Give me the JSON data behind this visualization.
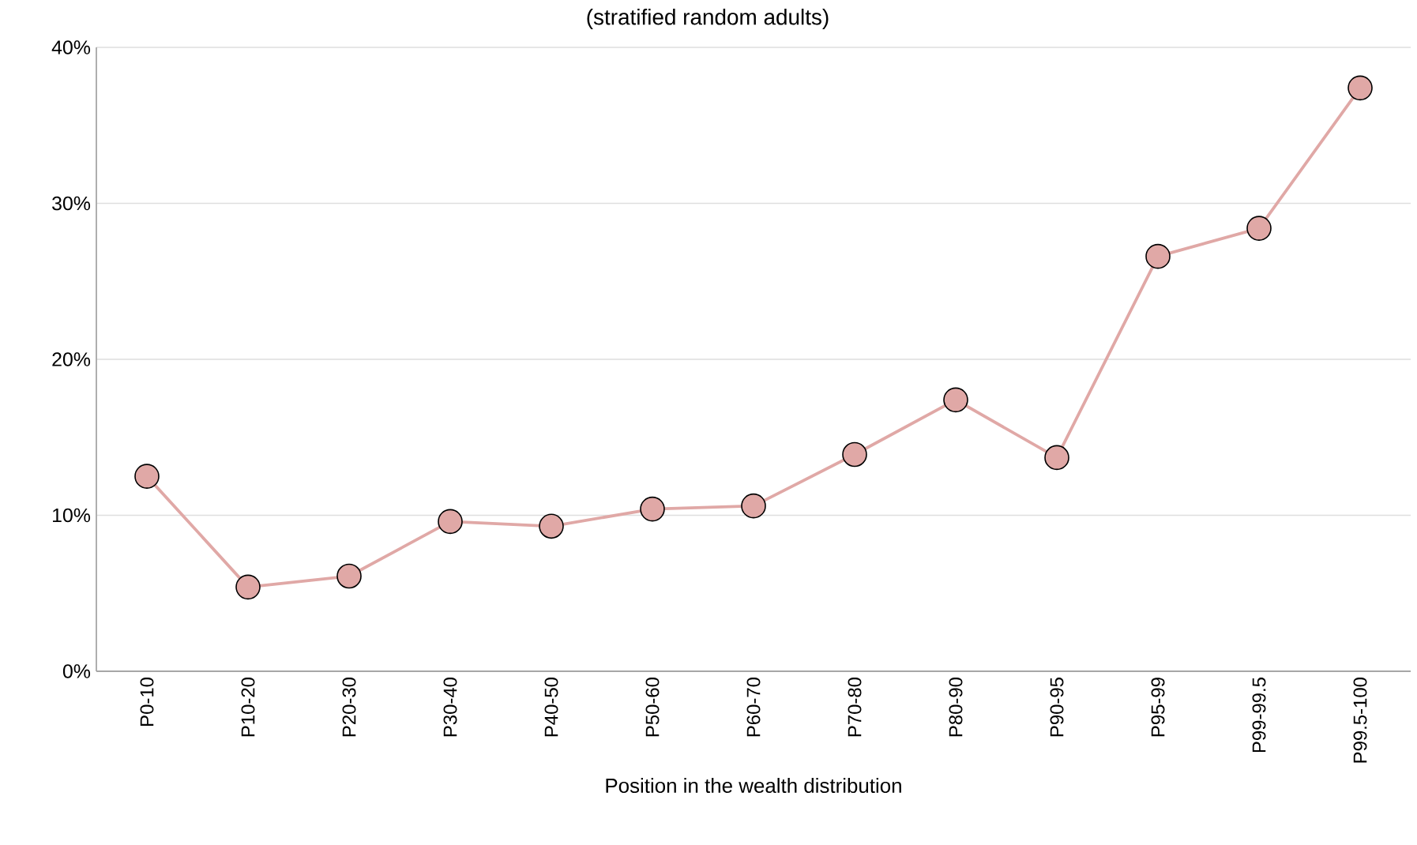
{
  "chart_data": {
    "type": "line",
    "subtitle": "(stratified random adults)",
    "xlabel": "Position in the wealth distribution",
    "categories": [
      "P0-10",
      "P10-20",
      "P20-30",
      "P30-40",
      "P40-50",
      "P50-60",
      "P60-70",
      "P70-80",
      "P80-90",
      "P90-95",
      "P95-99",
      "P99-99.5",
      "P99.5-100"
    ],
    "series": [
      {
        "color": "#e0a8a6",
        "values": [
          12.5,
          5.4,
          6.1,
          9.6,
          9.3,
          10.4,
          10.6,
          13.9,
          17.4,
          13.7,
          26.6,
          28.4,
          37.4
        ]
      }
    ],
    "ylim": [
      0,
      40
    ],
    "yticks": [
      {
        "value": 0,
        "label": "0%"
      },
      {
        "value": 10,
        "label": "10%"
      },
      {
        "value": 20,
        "label": "20%"
      },
      {
        "value": 30,
        "label": "30%"
      },
      {
        "value": 40,
        "label": "40%"
      }
    ],
    "grid": "y",
    "marker": "circle",
    "line_style": "solid"
  }
}
